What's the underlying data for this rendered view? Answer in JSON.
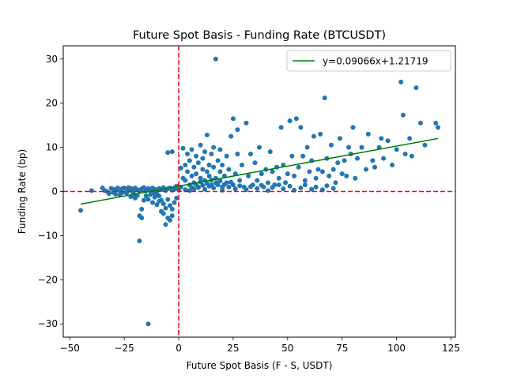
{
  "chart_data": {
    "type": "scatter",
    "title": "Future Spot Basis - Funding Rate (BTCUSDT)",
    "xlabel": "Future Spot Basis (F - S, USDT)",
    "ylabel": "Funding Rate (bp)",
    "xlim": [
      -53,
      127
    ],
    "ylim": [
      -33,
      33
    ],
    "xticks": [
      -50,
      -25,
      0,
      25,
      50,
      75,
      100,
      125
    ],
    "yticks": [
      -30,
      -20,
      -10,
      0,
      10,
      20,
      30
    ],
    "xtick_labels": [
      "−50",
      "−25",
      "0",
      "25",
      "50",
      "75",
      "100",
      "125"
    ],
    "ytick_labels": [
      "−30",
      "−20",
      "−10",
      "0",
      "10",
      "20",
      "30"
    ],
    "grid": false,
    "legend_position": "top-right",
    "point_color": "#1f77b4",
    "series": [
      {
        "name": "",
        "points": [
          [
            -45,
            -4.3
          ],
          [
            -40,
            0.2
          ],
          [
            -35,
            0.8
          ],
          [
            -34,
            0.2
          ],
          [
            -33,
            0
          ],
          [
            -32,
            -0.5
          ],
          [
            -31,
            0.7
          ],
          [
            -30,
            0.5
          ],
          [
            -29,
            0.3
          ],
          [
            -28,
            0.8
          ],
          [
            -27,
            0.1
          ],
          [
            -26,
            -0.3
          ],
          [
            -25,
            0.8
          ],
          [
            -24,
            0.5
          ],
          [
            -23,
            0.2
          ],
          [
            -22,
            0.7
          ],
          [
            -21,
            -0.2
          ],
          [
            -20,
            0.8
          ],
          [
            -19,
            0.4
          ],
          [
            -18,
            0.1
          ],
          [
            -17,
            0.6
          ],
          [
            -16,
            0.9
          ],
          [
            -15,
            0.3
          ],
          [
            -14,
            0.7
          ],
          [
            -13,
            0.2
          ],
          [
            -12,
            0.8
          ],
          [
            -11,
            0.5
          ],
          [
            -10,
            0.3
          ],
          [
            -9,
            0.7
          ],
          [
            -8,
            0.4
          ],
          [
            -7,
            0.9
          ],
          [
            -6,
            0.2
          ],
          [
            -5,
            0.6
          ],
          [
            -4,
            0.8
          ],
          [
            -3,
            0.3
          ],
          [
            -2,
            0.5
          ],
          [
            -1,
            0.7
          ],
          [
            -29,
            -0.6
          ],
          [
            -27,
            -0.8
          ],
          [
            -24,
            -0.4
          ],
          [
            -22,
            -1.2
          ],
          [
            -20,
            -1.5
          ],
          [
            -19,
            -0.9
          ],
          [
            -18,
            -5.5
          ],
          [
            -17,
            -4.0
          ],
          [
            -16,
            -2.0
          ],
          [
            -15,
            -1.0
          ],
          [
            -14,
            -1.8
          ],
          [
            -13,
            -0.7
          ],
          [
            -12,
            -2.5
          ],
          [
            -11,
            -1.3
          ],
          [
            -10,
            -3.0
          ],
          [
            -9,
            -2.2
          ],
          [
            -8,
            -4.5
          ],
          [
            -7,
            -5.0
          ],
          [
            -6,
            -3.8
          ],
          [
            -5,
            -6.0
          ],
          [
            -4,
            -3.2
          ],
          [
            -3,
            -4.0
          ],
          [
            -2,
            -2.5
          ],
          [
            -1,
            -1.5
          ],
          [
            -6,
            -7.5
          ],
          [
            -4,
            -6.5
          ],
          [
            -3,
            -5.5
          ],
          [
            -8,
            -2.0
          ],
          [
            -9,
            -1.0
          ],
          [
            -5,
            -1.8
          ],
          [
            -7,
            -2.8
          ],
          [
            -10,
            -0.6
          ],
          [
            -11,
            -0.4
          ],
          [
            -18,
            -11.2
          ],
          [
            -14,
            -30
          ],
          [
            -17,
            -6.0
          ],
          [
            -20,
            -0.8
          ],
          [
            -30,
            -0.2
          ],
          [
            -26,
            0.6
          ],
          [
            -23,
            0.9
          ],
          [
            -21,
            0.4
          ],
          [
            -15,
            0.1
          ],
          [
            -12,
            -0.3
          ],
          [
            -5,
            8.8
          ],
          [
            -3,
            9.0
          ],
          [
            -2,
            0.8
          ],
          [
            -1,
            1.2
          ],
          [
            0,
            0.5
          ],
          [
            1,
            5.3
          ],
          [
            1,
            1.0
          ],
          [
            2,
            9.8
          ],
          [
            2,
            3.0
          ],
          [
            3,
            2.5
          ],
          [
            3,
            6.0
          ],
          [
            4,
            4.5
          ],
          [
            4,
            8.5
          ],
          [
            5,
            1.5
          ],
          [
            5,
            7.0
          ],
          [
            6,
            3.5
          ],
          [
            6,
            9.5
          ],
          [
            7,
            2.0
          ],
          [
            7,
            5.5
          ],
          [
            8,
            4.0
          ],
          [
            8,
            8.0
          ],
          [
            9,
            1.0
          ],
          [
            9,
            6.5
          ],
          [
            10,
            3.0
          ],
          [
            10,
            10.5
          ],
          [
            11,
            5.0
          ],
          [
            11,
            7.5
          ],
          [
            12,
            2.5
          ],
          [
            12,
            9.0
          ],
          [
            13,
            4.5
          ],
          [
            13,
            12.8
          ],
          [
            14,
            6.0
          ],
          [
            14,
            3.5
          ],
          [
            15,
            8.5
          ],
          [
            15,
            1.5
          ],
          [
            16,
            5.5
          ],
          [
            16,
            10.0
          ],
          [
            17,
            3.0
          ],
          [
            17,
            30
          ],
          [
            18,
            7.0
          ],
          [
            18,
            2.0
          ],
          [
            19,
            4.5
          ],
          [
            19,
            9.5
          ],
          [
            20,
            1.0
          ],
          [
            20,
            6.0
          ],
          [
            21,
            3.5
          ],
          [
            22,
            8.0
          ],
          [
            22,
            2.0
          ],
          [
            23,
            5.0
          ],
          [
            24,
            12.5
          ],
          [
            25,
            1.5
          ],
          [
            25,
            16.5
          ],
          [
            26,
            4.0
          ],
          [
            27,
            14.0
          ],
          [
            27,
            8.5
          ],
          [
            28,
            2.5
          ],
          [
            29,
            6.0
          ],
          [
            30,
            1.0
          ],
          [
            31,
            15.5
          ],
          [
            32,
            3.5
          ],
          [
            33,
            8.5
          ],
          [
            34,
            1.5
          ],
          [
            35,
            6.5
          ],
          [
            36,
            2.5
          ],
          [
            37,
            10.0
          ],
          [
            38,
            4.0
          ],
          [
            39,
            1.0
          ],
          [
            40,
            5.0
          ],
          [
            41,
            2.0
          ],
          [
            42,
            9.0
          ],
          [
            43,
            4.5
          ],
          [
            44,
            1.5
          ],
          [
            45,
            5.5
          ],
          [
            46,
            3.0
          ],
          [
            47,
            14.5
          ],
          [
            48,
            6.0
          ],
          [
            49,
            2.0
          ],
          [
            50,
            4.0
          ],
          [
            51,
            16.0
          ],
          [
            52,
            8.0
          ],
          [
            53,
            3.5
          ],
          [
            54,
            16.5
          ],
          [
            55,
            5.5
          ],
          [
            56,
            14.5
          ],
          [
            57,
            8.0
          ],
          [
            58,
            2.5
          ],
          [
            59,
            10.0
          ],
          [
            60,
            4.5
          ],
          [
            61,
            7.0
          ],
          [
            62,
            12.5
          ],
          [
            63,
            3.0
          ],
          [
            64,
            5.0
          ],
          [
            65,
            13.0
          ],
          [
            66,
            4.5
          ],
          [
            67,
            21.2
          ],
          [
            68,
            7.5
          ],
          [
            69,
            3.5
          ],
          [
            70,
            10.5
          ],
          [
            71,
            5.0
          ],
          [
            72,
            2.0
          ],
          [
            73,
            6.5
          ],
          [
            74,
            12.0
          ],
          [
            75,
            4.0
          ],
          [
            76,
            7.0
          ],
          [
            77,
            3.5
          ],
          [
            78,
            10.0
          ],
          [
            79,
            8.5
          ],
          [
            80,
            14.5
          ],
          [
            81,
            3.0
          ],
          [
            82,
            7.5
          ],
          [
            84,
            10.0
          ],
          [
            86,
            5.0
          ],
          [
            87,
            13.0
          ],
          [
            89,
            7.0
          ],
          [
            90,
            5.5
          ],
          [
            92,
            10.0
          ],
          [
            93,
            12.0
          ],
          [
            94,
            7.5
          ],
          [
            96,
            11.5
          ],
          [
            98,
            6.0
          ],
          [
            100,
            9.5
          ],
          [
            102,
            24.8
          ],
          [
            103,
            17.3
          ],
          [
            104,
            8.5
          ],
          [
            106,
            12.0
          ],
          [
            107,
            8.0
          ],
          [
            109,
            23.5
          ],
          [
            111,
            15.5
          ],
          [
            113,
            10.5
          ],
          [
            118,
            15.5
          ],
          [
            119,
            14.5
          ],
          [
            12,
            0.5
          ],
          [
            14,
            1.2
          ],
          [
            16,
            0.8
          ],
          [
            18,
            1.5
          ],
          [
            20,
            0.3
          ],
          [
            23,
            1.0
          ],
          [
            26,
            0.6
          ],
          [
            28,
            1.3
          ],
          [
            31,
            0.4
          ],
          [
            33,
            1.1
          ],
          [
            36,
            0.7
          ],
          [
            38,
            1.4
          ],
          [
            41,
            0.2
          ],
          [
            43,
            0.9
          ],
          [
            46,
            1.5
          ],
          [
            48,
            0.6
          ],
          [
            51,
            1.2
          ],
          [
            53,
            0.3
          ],
          [
            56,
            0.8
          ],
          [
            58,
            1.5
          ],
          [
            61,
            0.5
          ],
          [
            63,
            1.0
          ],
          [
            66,
            0.4
          ],
          [
            68,
            1.3
          ],
          [
            71,
            0.7
          ],
          [
            5,
            0.2
          ],
          [
            7,
            0.6
          ],
          [
            9,
            0.9
          ],
          [
            11,
            1.4
          ],
          [
            3,
            0.4
          ],
          [
            6,
            0.9
          ],
          [
            8,
            1.6
          ],
          [
            10,
            2.2
          ],
          [
            13,
            1.8
          ],
          [
            15,
            2.6
          ],
          [
            17,
            1.9
          ],
          [
            19,
            2.4
          ],
          [
            21,
            1.6
          ],
          [
            24,
            2.1
          ]
        ]
      }
    ],
    "fit": {
      "label": "y=0.09066x+1.21719",
      "slope": 0.09066,
      "intercept": 1.21719,
      "x_range": [
        -45,
        119
      ],
      "color": "#008000"
    },
    "reference_lines": {
      "color": "#ff0000",
      "horizontal_y": 0,
      "vertical_x": 0
    }
  }
}
